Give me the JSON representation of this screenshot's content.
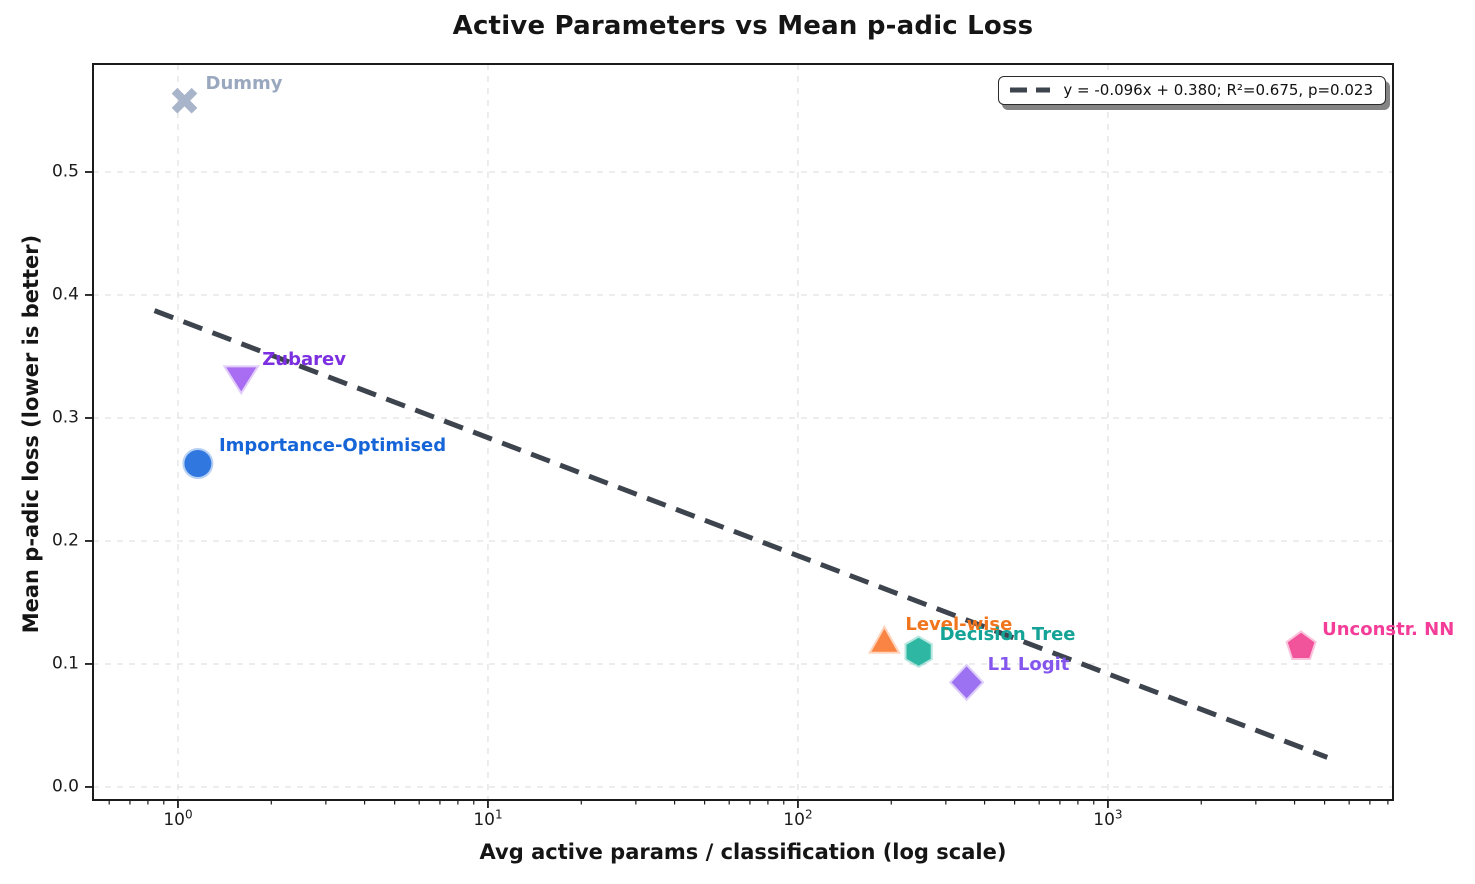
{
  "title": "Active Parameters vs Mean p-adic Loss",
  "legend": {
    "label": "y = -0.096x + 0.380; R²=0.675, p=0.023",
    "position": "upper right"
  },
  "chart_data": {
    "type": "scatter",
    "title": "Active Parameters vs Mean p-adic Loss",
    "xlabel": "Avg active params / classification (log scale)",
    "ylabel": "Mean p-adic loss (lower is better)",
    "x_scale": "log",
    "xlim": [
      0.532,
      8310
    ],
    "ylim": [
      -0.0106,
      0.5878
    ],
    "grid": true,
    "x_ticks": [
      {
        "value": 1,
        "label": "10^0"
      },
      {
        "value": 10,
        "label": "10^1"
      },
      {
        "value": 100,
        "label": "10^2"
      },
      {
        "value": 1000,
        "label": "10^3"
      }
    ],
    "x_minor_decades": [
      -1,
      0,
      1,
      2,
      3
    ],
    "y_ticks": [
      {
        "value": 0.0,
        "label": "0.0"
      },
      {
        "value": 0.1,
        "label": "0.1"
      },
      {
        "value": 0.2,
        "label": "0.2"
      },
      {
        "value": 0.3,
        "label": "0.3"
      },
      {
        "value": 0.4,
        "label": "0.4"
      },
      {
        "value": 0.5,
        "label": "0.5"
      }
    ],
    "points": [
      {
        "label": "Dummy",
        "x": 1.05,
        "y": 0.558,
        "marker": "x",
        "color": "#a7b4c9",
        "label_color": "#9aa8bf"
      },
      {
        "label": "Zubarev",
        "x": 1.6,
        "y": 0.333,
        "marker": "triangle-down",
        "color": "#a86df2",
        "label_color": "#7c2fe0"
      },
      {
        "label": "Importance-Optimised",
        "x": 1.16,
        "y": 0.263,
        "marker": "circle",
        "color": "#3078e0",
        "label_color": "#1565d8"
      },
      {
        "label": "Level-wise",
        "x": 190,
        "y": 0.118,
        "marker": "triangle-up",
        "color": "#fa8443",
        "label_color": "#f0751d"
      },
      {
        "label": "Decision Tree",
        "x": 245,
        "y": 0.11,
        "marker": "hexagon",
        "color": "#2eb8a4",
        "label_color": "#14a396"
      },
      {
        "label": "L1 Logit",
        "x": 350,
        "y": 0.085,
        "marker": "diamond",
        "color": "#9d72f2",
        "label_color": "#8456ee"
      },
      {
        "label": "Unconstr. NN",
        "x": 4200,
        "y": 0.114,
        "marker": "pentagon",
        "color": "#f2549c",
        "label_color": "#f43d98"
      }
    ],
    "trendline": {
      "slope": -0.096,
      "intercept": 0.38,
      "x_start": 0.84,
      "x_end": 5100,
      "r_squared": 0.675,
      "p_value": 0.023,
      "color": "#3d444d",
      "style": "dashed"
    },
    "colors": {
      "grid": "#e2e2e2",
      "spine": "#1b1b1b",
      "tick_label": "#1b1b1b"
    }
  }
}
